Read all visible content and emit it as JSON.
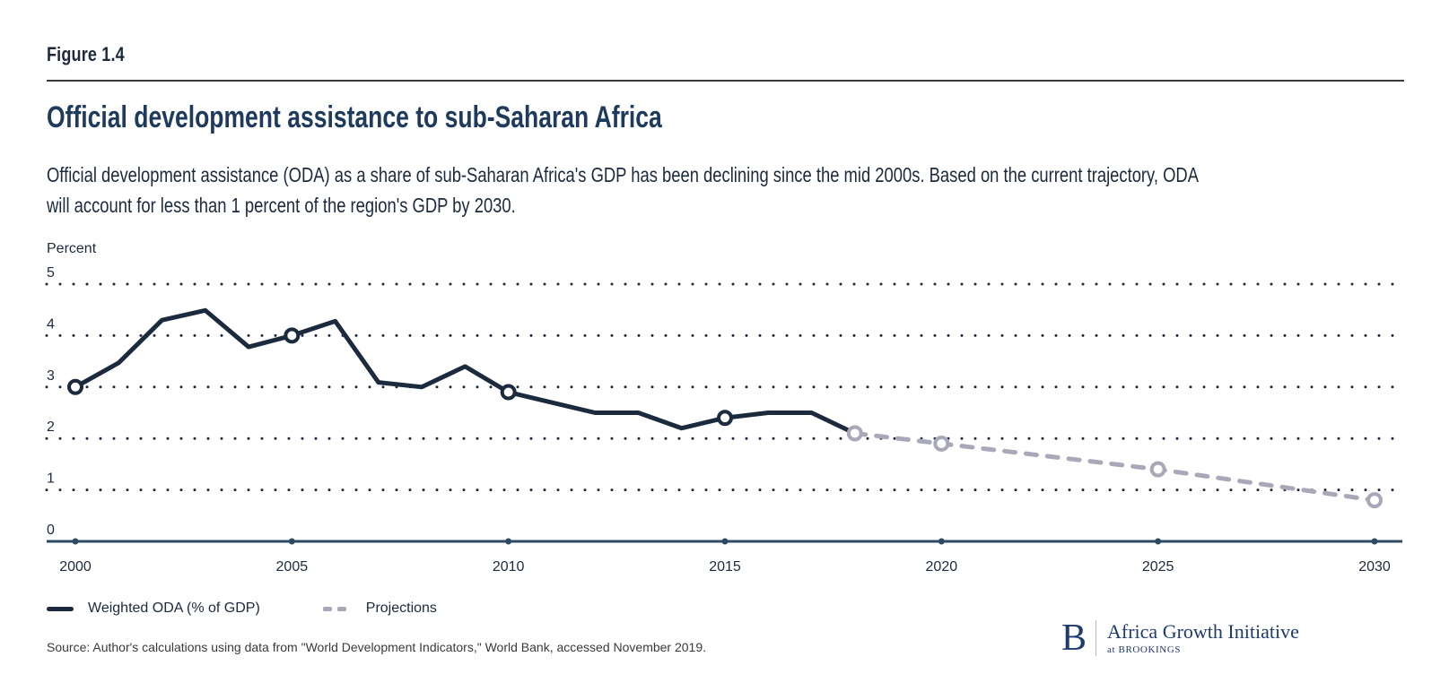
{
  "figure_label": "Figure 1.4",
  "title": "Official development assistance to sub-Saharan Africa",
  "subtitle_lines": [
    "Official development assistance (ODA) as a share of sub-Saharan Africa's GDP has been declining since the mid 2000s. Based on the current trajectory, ODA",
    "will account for less than 1 percent of the region's GDP by 2030."
  ],
  "colors": {
    "series_actual": "#1b2a3d",
    "series_projection": "#a9a8b8",
    "axis": "#2e4a63",
    "grid": "#1b2a3d",
    "title": "#1e3a5c"
  },
  "chart_data": {
    "type": "line",
    "title": "Official development assistance to sub-Saharan Africa",
    "xlabel": "",
    "ylabel": "Percent",
    "xlim": [
      2000,
      2030
    ],
    "ylim": [
      0,
      5
    ],
    "yticks": [
      0,
      1,
      2,
      3,
      4,
      5
    ],
    "xticks": [
      2000,
      2005,
      2010,
      2015,
      2020,
      2025,
      2030
    ],
    "grid": "horizontal dotted",
    "legend_position": "bottom-left",
    "series": [
      {
        "name": "Weighted ODA (% of GDP)",
        "style": "solid",
        "x": [
          2000,
          2001,
          2002,
          2003,
          2004,
          2005,
          2006,
          2007,
          2008,
          2009,
          2010,
          2011,
          2012,
          2013,
          2014,
          2015,
          2016,
          2017,
          2018
        ],
        "values": [
          3.0,
          3.47,
          4.3,
          4.49,
          3.78,
          4.0,
          4.28,
          3.09,
          3.0,
          3.4,
          2.9,
          2.7,
          2.5,
          2.5,
          2.2,
          2.4,
          2.5,
          2.5,
          2.1
        ],
        "markers_at": [
          2000,
          2005,
          2010,
          2015
        ]
      },
      {
        "name": "Projections",
        "style": "dashed",
        "x": [
          2018,
          2020,
          2025,
          2030
        ],
        "values": [
          2.1,
          1.9,
          1.4,
          0.8
        ],
        "markers_at": [
          2018,
          2020,
          2025,
          2030
        ]
      }
    ]
  },
  "legend": [
    {
      "label": "Weighted ODA (% of GDP)"
    },
    {
      "label": "Projections"
    }
  ],
  "source": "Source: Author's calculations using data from \"World Development Indicators,\" World Bank, accessed November 2019.",
  "logo": {
    "mark": "B",
    "name": "Africa Growth Initiative",
    "sub": "at BROOKINGS"
  }
}
